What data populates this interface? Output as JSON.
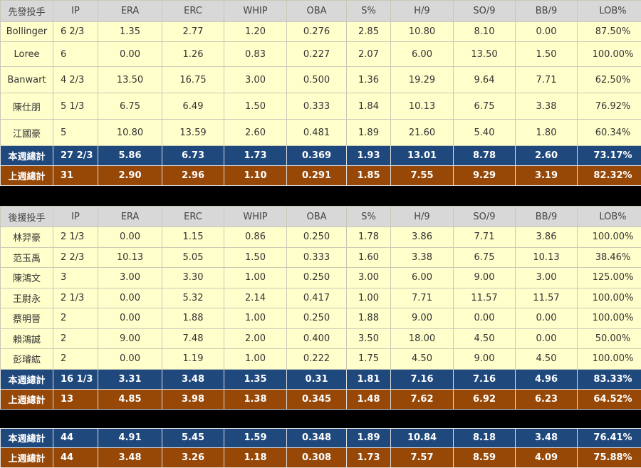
{
  "starters": {
    "headers": [
      "先發投手",
      "IP",
      "ERA",
      "ERC",
      "WHIP",
      "OBA",
      "S%",
      "H/9",
      "SO/9",
      "BB/9",
      "LOB%"
    ],
    "rows": [
      [
        "Bollinger",
        "6 2/3",
        "1.35",
        "2.77",
        "1.20",
        "0.276",
        "2.85",
        "10.80",
        "8.10",
        "0.00",
        "87.50%"
      ],
      [
        "Loree",
        "6",
        "0.00",
        "1.26",
        "0.83",
        "0.227",
        "2.07",
        "6.00",
        "13.50",
        "1.50",
        "100.00%"
      ],
      [
        "Banwart",
        "4 2/3",
        "13.50",
        "16.75",
        "3.00",
        "0.500",
        "1.36",
        "19.29",
        "9.64",
        "7.71",
        "62.50%"
      ],
      [
        "陳仕朋",
        "5 1/3",
        "6.75",
        "6.49",
        "1.50",
        "0.333",
        "1.84",
        "10.13",
        "6.75",
        "3.38",
        "76.92%"
      ],
      [
        "江國豪",
        "5",
        "10.80",
        "13.59",
        "2.60",
        "0.481",
        "1.89",
        "21.60",
        "5.40",
        "1.80",
        "60.34%"
      ]
    ],
    "this_week": [
      "本週總計",
      "27 2/3",
      "5.86",
      "6.73",
      "1.73",
      "0.369",
      "1.93",
      "13.01",
      "8.78",
      "2.60",
      "73.17%"
    ],
    "last_week": [
      "上週總計",
      "31",
      "2.90",
      "2.96",
      "1.10",
      "0.291",
      "1.85",
      "7.55",
      "9.29",
      "3.19",
      "82.32%"
    ]
  },
  "relievers": {
    "headers": [
      "後援投手",
      "IP",
      "ERA",
      "ERC",
      "WHIP",
      "OBA",
      "S%",
      "H/9",
      "SO/9",
      "BB/9",
      "LOB%"
    ],
    "rows": [
      [
        "林羿豪",
        "2 1/3",
        "0.00",
        "1.15",
        "0.86",
        "0.250",
        "1.78",
        "3.86",
        "7.71",
        "3.86",
        "100.00%"
      ],
      [
        "范玉禹",
        "2 2/3",
        "10.13",
        "5.05",
        "1.50",
        "0.333",
        "1.60",
        "3.38",
        "6.75",
        "10.13",
        "38.46%"
      ],
      [
        "陳鴻文",
        "3",
        "3.00",
        "3.30",
        "1.00",
        "0.250",
        "3.00",
        "6.00",
        "9.00",
        "3.00",
        "125.00%"
      ],
      [
        "王尉永",
        "2 1/3",
        "0.00",
        "5.32",
        "2.14",
        "0.417",
        "1.00",
        "7.71",
        "11.57",
        "11.57",
        "100.00%"
      ],
      [
        "蔡明晉",
        "2",
        "0.00",
        "1.88",
        "1.00",
        "0.250",
        "1.88",
        "9.00",
        "0.00",
        "0.00",
        "100.00%"
      ],
      [
        "賴鴻誠",
        "2",
        "9.00",
        "7.48",
        "2.00",
        "0.400",
        "3.50",
        "18.00",
        "4.50",
        "0.00",
        "50.00%"
      ],
      [
        "彭璿紘",
        "2",
        "0.00",
        "1.19",
        "1.00",
        "0.222",
        "1.75",
        "4.50",
        "9.00",
        "4.50",
        "100.00%"
      ]
    ],
    "this_week": [
      "本週總計",
      "16 1/3",
      "3.31",
      "3.48",
      "1.35",
      "0.31",
      "1.81",
      "7.16",
      "7.16",
      "4.96",
      "83.33%"
    ],
    "last_week": [
      "上週總計",
      "13",
      "4.85",
      "3.98",
      "1.38",
      "0.345",
      "1.48",
      "7.62",
      "6.92",
      "6.23",
      "64.52%"
    ]
  },
  "overall": {
    "this_week": [
      "本週總計",
      "44",
      "4.91",
      "5.45",
      "1.59",
      "0.348",
      "1.89",
      "10.84",
      "8.18",
      "3.48",
      "76.41%"
    ],
    "last_week": [
      "上週總計",
      "44",
      "3.48",
      "3.26",
      "1.18",
      "0.308",
      "1.73",
      "7.57",
      "8.59",
      "4.09",
      "75.88%"
    ]
  }
}
